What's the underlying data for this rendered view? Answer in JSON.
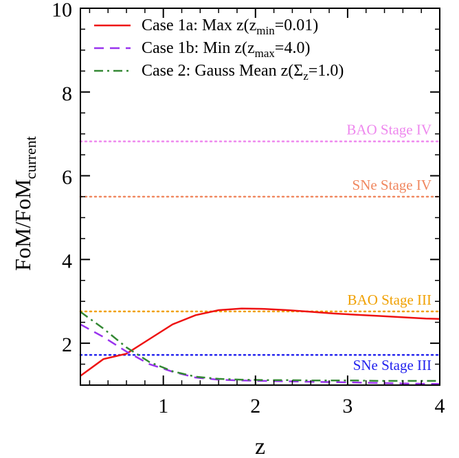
{
  "chart_data": {
    "type": "line",
    "xlabel": "z",
    "ylabel_main": "FoM/FoM",
    "ylabel_sub": "current",
    "xlim": [
      0.1,
      4.0
    ],
    "ylim": [
      1.0,
      10.0
    ],
    "xticks": [
      {
        "value": 1,
        "label": "1"
      },
      {
        "value": 2,
        "label": "2"
      },
      {
        "value": 3,
        "label": "3"
      },
      {
        "value": 4,
        "label": "4"
      }
    ],
    "yticks": [
      {
        "value": 2,
        "label": "2"
      },
      {
        "value": 4,
        "label": "4"
      },
      {
        "value": 6,
        "label": "6"
      },
      {
        "value": 8,
        "label": "8"
      },
      {
        "value": 10,
        "label": "10"
      }
    ],
    "legend_position": "top-left",
    "series": [
      {
        "key": "case1a",
        "legend_main": "Case 1a: Max z(z",
        "legend_sub": "min",
        "legend_tail": "=0.01)",
        "color": "#ee1111",
        "dash": "solid",
        "x": [
          0.1,
          0.35,
          0.6,
          0.85,
          1.1,
          1.35,
          1.6,
          1.85,
          2.1,
          2.35,
          2.6,
          2.85,
          3.1,
          3.35,
          3.6,
          3.85,
          4.0
        ],
        "y": [
          1.22,
          1.62,
          1.75,
          2.1,
          2.45,
          2.67,
          2.79,
          2.83,
          2.82,
          2.79,
          2.75,
          2.71,
          2.68,
          2.65,
          2.62,
          2.59,
          2.58
        ]
      },
      {
        "key": "case1b",
        "legend_main": "Case 1b: Min z(z",
        "legend_sub": "max",
        "legend_tail": "=4.0)",
        "color": "#9933ee",
        "dash": "dashed",
        "x": [
          0.1,
          0.35,
          0.6,
          0.85,
          1.1,
          1.35,
          1.6,
          1.85,
          2.1,
          2.35,
          2.6,
          2.85,
          3.1,
          3.35,
          3.6,
          3.85,
          4.0
        ],
        "y": [
          2.45,
          2.15,
          1.8,
          1.5,
          1.32,
          1.18,
          1.13,
          1.11,
          1.1,
          1.09,
          1.08,
          1.07,
          1.06,
          1.05,
          1.04,
          1.03,
          1.03
        ]
      },
      {
        "key": "case2",
        "legend_main": "Case 2: Gauss Mean z(Σ",
        "legend_sub": "z",
        "legend_tail": "=1.0)",
        "color": "#338833",
        "dash": "dashdot",
        "x": [
          0.1,
          0.35,
          0.6,
          0.85,
          1.1,
          1.35,
          1.6,
          1.85,
          2.1,
          2.35,
          2.6,
          2.85,
          3.1,
          3.35,
          3.6,
          3.85,
          4.0
        ],
        "y": [
          2.75,
          2.35,
          1.9,
          1.55,
          1.33,
          1.2,
          1.15,
          1.13,
          1.12,
          1.12,
          1.11,
          1.11,
          1.11,
          1.1,
          1.1,
          1.1,
          1.1
        ]
      }
    ],
    "reference_lines": [
      {
        "label": "BAO Stage IV",
        "y": 6.82,
        "color": "#ee88ee",
        "label_position": "above"
      },
      {
        "label": "SNe Stage IV",
        "y": 5.5,
        "color": "#f08860",
        "label_position": "above"
      },
      {
        "label": "BAO Stage III",
        "y": 2.76,
        "color": "#f0a000",
        "label_position": "above"
      },
      {
        "label": "SNe Stage III",
        "y": 1.72,
        "color": "#2222ee",
        "label_position": "below"
      }
    ]
  }
}
